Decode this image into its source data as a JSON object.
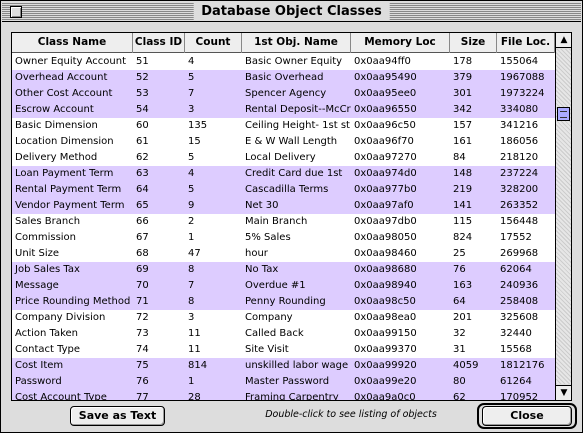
{
  "window": {
    "title": "Database Object Classes"
  },
  "table": {
    "columns": [
      "Class Name",
      "Class ID",
      "Count",
      "1st Obj. Name",
      "Memory Loc",
      "Size",
      "File Loc."
    ],
    "rows": [
      {
        "cells": [
          "Owner Equity Account",
          "51",
          "4",
          "Basic Owner Equity",
          "0x0aa94ff0",
          "178",
          "155064"
        ],
        "hl": false
      },
      {
        "cells": [
          "Overhead Account",
          "52",
          "5",
          "Basic Overhead",
          "0x0aa95490",
          "379",
          "1967088"
        ],
        "hl": true
      },
      {
        "cells": [
          "Other Cost Account",
          "53",
          "7",
          "Spencer Agency",
          "0x0aa95ee0",
          "301",
          "1973224"
        ],
        "hl": true
      },
      {
        "cells": [
          "Escrow Account",
          "54",
          "3",
          "Rental Deposit--McCree",
          "0x0aa96550",
          "342",
          "334080"
        ],
        "hl": true
      },
      {
        "cells": [
          "Basic Dimension",
          "60",
          "135",
          "Ceiling Height- 1st st...",
          "0x0aa96c50",
          "157",
          "341216"
        ],
        "hl": false
      },
      {
        "cells": [
          "Location Dimension",
          "61",
          "15",
          "E & W Wall Length",
          "0x0aa96f70",
          "161",
          "186056"
        ],
        "hl": false
      },
      {
        "cells": [
          "Delivery Method",
          "62",
          "5",
          "Local Delivery",
          "0x0aa97270",
          "84",
          "218120"
        ],
        "hl": false
      },
      {
        "cells": [
          "Loan Payment Term",
          "63",
          "4",
          "Credit Card due 1st",
          "0x0aa974d0",
          "148",
          "237224"
        ],
        "hl": true
      },
      {
        "cells": [
          "Rental Payment Term",
          "64",
          "5",
          "Cascadilla Terms",
          "0x0aa977b0",
          "219",
          "328200"
        ],
        "hl": true
      },
      {
        "cells": [
          "Vendor Payment Term",
          "65",
          "9",
          "Net 30",
          "0x0aa97af0",
          "141",
          "263352"
        ],
        "hl": true
      },
      {
        "cells": [
          "Sales Branch",
          "66",
          "2",
          "Main Branch",
          "0x0aa97db0",
          "115",
          "156448"
        ],
        "hl": false
      },
      {
        "cells": [
          "Commission",
          "67",
          "1",
          "5% Sales",
          "0x0aa98050",
          "824",
          "17552"
        ],
        "hl": false
      },
      {
        "cells": [
          "Unit Size",
          "68",
          "47",
          "hour",
          "0x0aa98460",
          "25",
          "269968"
        ],
        "hl": false
      },
      {
        "cells": [
          "Job Sales Tax",
          "69",
          "8",
          "No Tax",
          "0x0aa98680",
          "76",
          "62064"
        ],
        "hl": true
      },
      {
        "cells": [
          "Message",
          "70",
          "7",
          "Overdue #1",
          "0x0aa98940",
          "163",
          "240936"
        ],
        "hl": true
      },
      {
        "cells": [
          "Price Rounding Method",
          "71",
          "8",
          "Penny Rounding",
          "0x0aa98c50",
          "64",
          "258408"
        ],
        "hl": true
      },
      {
        "cells": [
          "Company Division",
          "72",
          "3",
          "Company",
          "0x0aa98ea0",
          "201",
          "325608"
        ],
        "hl": false
      },
      {
        "cells": [
          "Action Taken",
          "73",
          "11",
          "Called Back",
          "0x0aa99150",
          "32",
          "32440"
        ],
        "hl": false
      },
      {
        "cells": [
          "Contact Type",
          "74",
          "11",
          "Site Visit",
          "0x0aa99370",
          "31",
          "15568"
        ],
        "hl": false
      },
      {
        "cells": [
          "Cost Item",
          "75",
          "814",
          "unskilled labor wage",
          "0x0aa99920",
          "4059",
          "1812176"
        ],
        "hl": true
      },
      {
        "cells": [
          "Password",
          "76",
          "1",
          "Master Password",
          "0x0aa99e20",
          "80",
          "61264"
        ],
        "hl": true
      },
      {
        "cells": [
          "Cost Account Type",
          "77",
          "28",
          "Framing Carpentry",
          "0x0aa9a0c0",
          "62",
          "170952"
        ],
        "hl": true
      }
    ]
  },
  "footer": {
    "save_label": "Save as Text",
    "hint": "Double-click to see listing of objects",
    "close_label": "Close"
  },
  "colors": {
    "highlight": "#ddccff",
    "window_bg": "#dddddd"
  }
}
